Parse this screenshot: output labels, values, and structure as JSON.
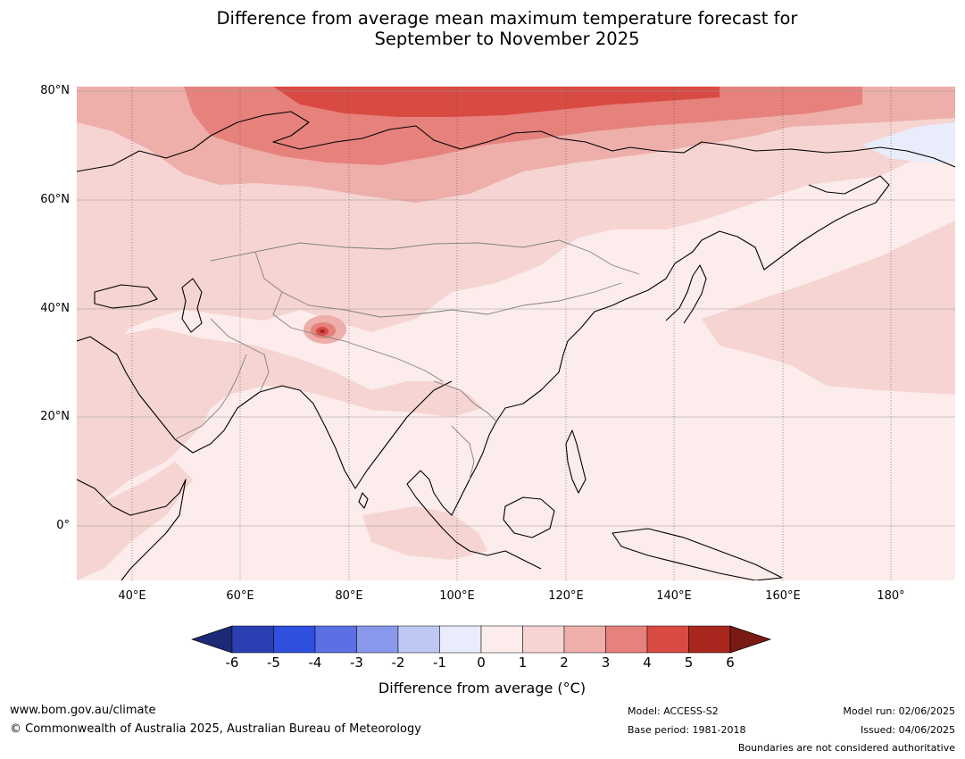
{
  "title_line1": "Difference from average mean maximum temperature forecast for",
  "title_line2": "September to November 2025",
  "lat_labels": [
    "80°N",
    "60°N",
    "40°N",
    "20°N",
    "0°"
  ],
  "lon_labels": [
    "40°E",
    "60°E",
    "80°E",
    "100°E",
    "120°E",
    "140°E",
    "160°E",
    "180°"
  ],
  "colorbar": {
    "ticks": [
      "-6",
      "-5",
      "-4",
      "-3",
      "-2",
      "-1",
      "0",
      "1",
      "2",
      "3",
      "4",
      "5",
      "6"
    ],
    "colors": [
      "#1c2a78",
      "#2a3fb2",
      "#2f4fde",
      "#5a70e3",
      "#8898ea",
      "#bfc8f5",
      "#e9ecfb",
      "#fceceb",
      "#f5d4d2",
      "#eeaeaa",
      "#e6817c",
      "#d84a42",
      "#a8271f",
      "#7a1a14"
    ],
    "label": "Difference from average (°C)"
  },
  "footer": {
    "website": "www.bom.gov.au/climate",
    "copyright": "© Commonwealth of Australia 2025, Australian Bureau of Meteorology",
    "model": "Model: ACCESS-S2",
    "base_period": "Base period: 1981-2018",
    "model_run": "Model run: 02/06/2025",
    "issued": "Issued: 04/06/2025",
    "disclaimer": "Boundaries are not considered authoritative"
  }
}
